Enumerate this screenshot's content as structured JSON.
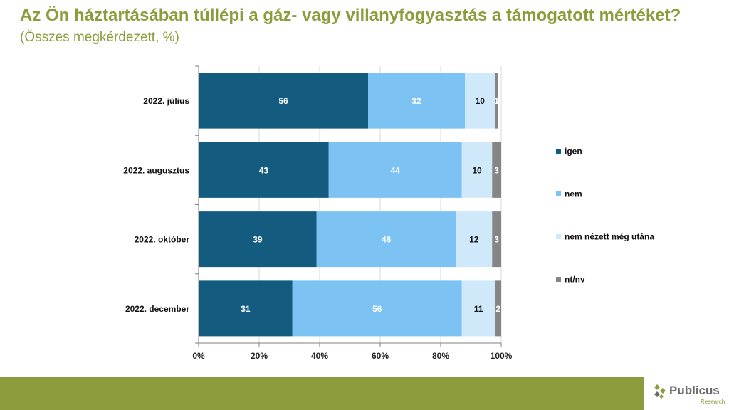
{
  "header": {
    "title": "Az Ön háztartásában túllépi a gáz- vagy villanyfogyasztás a támogatott mértéket?",
    "subtitle": "(Összes megkérdezett, %)"
  },
  "chart_data": {
    "type": "bar",
    "orientation": "horizontal",
    "stacked": true,
    "categories": [
      "2022. július",
      "2022. augusztus",
      "2022. október",
      "2022. december"
    ],
    "series": [
      {
        "name": "igen",
        "values": [
          56,
          43,
          39,
          31
        ],
        "color": "#135c80"
      },
      {
        "name": "nem",
        "values": [
          32,
          44,
          46,
          56
        ],
        "color": "#7cc2f2"
      },
      {
        "name": "nem nézett még utána",
        "values": [
          10,
          10,
          12,
          11
        ],
        "color": "#cfe9fb"
      },
      {
        "name": "nt/nv",
        "values": [
          1,
          3,
          3,
          2
        ],
        "color": "#858585"
      }
    ],
    "xlim": [
      0,
      100
    ],
    "xticks": [
      "0%",
      "20%",
      "40%",
      "60%",
      "80%",
      "100%"
    ],
    "grid": true,
    "legend": "right"
  },
  "branding": {
    "logo_name": "Publicus",
    "logo_sub": "Research",
    "accent_color": "#8c9c3c"
  }
}
